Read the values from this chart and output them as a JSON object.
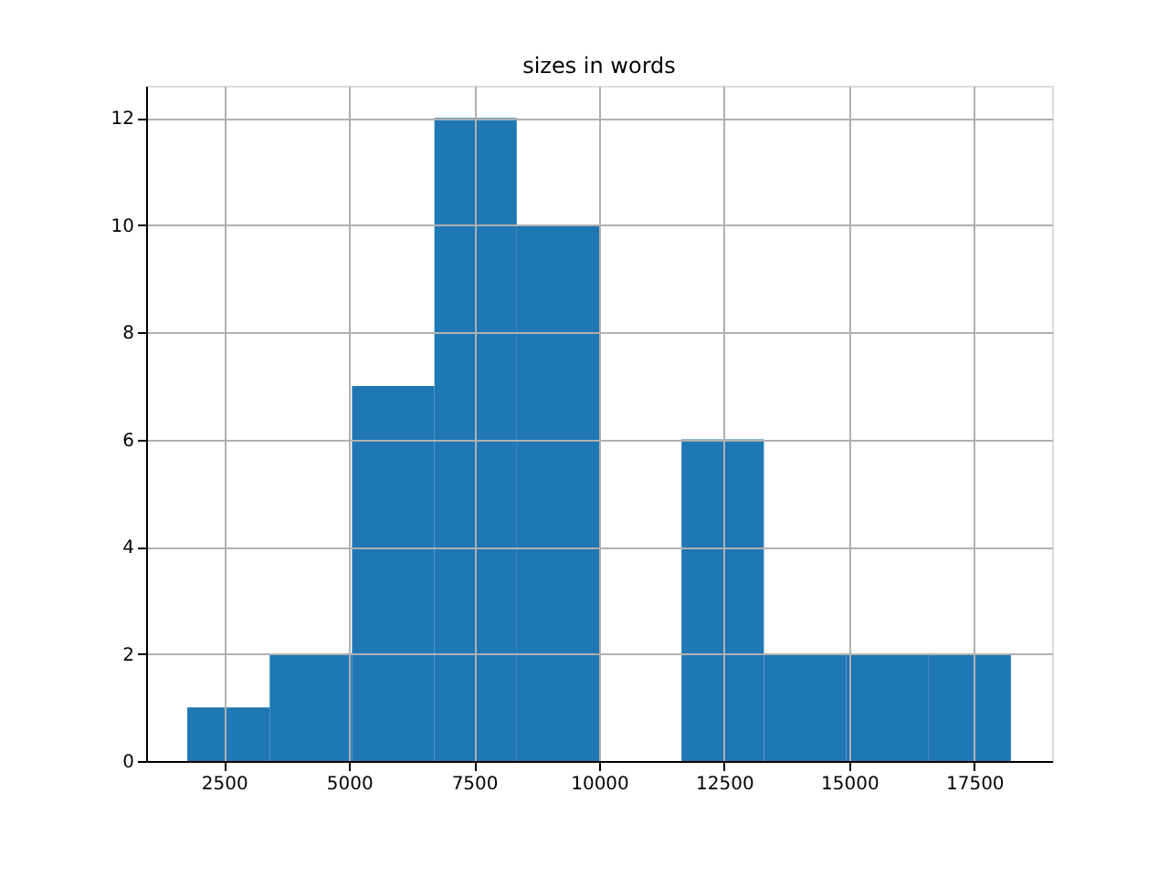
{
  "chart_data": {
    "type": "histogram",
    "title": "sizes in words",
    "bins": [
      1767,
      3414,
      5060,
      6707,
      8354,
      10000,
      11647,
      13294,
      14940,
      16587,
      18233
    ],
    "values": [
      1,
      2,
      7,
      12,
      10,
      0,
      6,
      2,
      2,
      2
    ],
    "color": "#1f77b4",
    "xlim": [
      944,
      19056
    ],
    "xticks": [
      2500,
      5000,
      7500,
      10000,
      12500,
      15000,
      17500
    ],
    "ylim": [
      0,
      12.6
    ],
    "yticks": [
      0,
      2,
      4,
      6,
      8,
      10,
      12
    ],
    "grid": true
  }
}
